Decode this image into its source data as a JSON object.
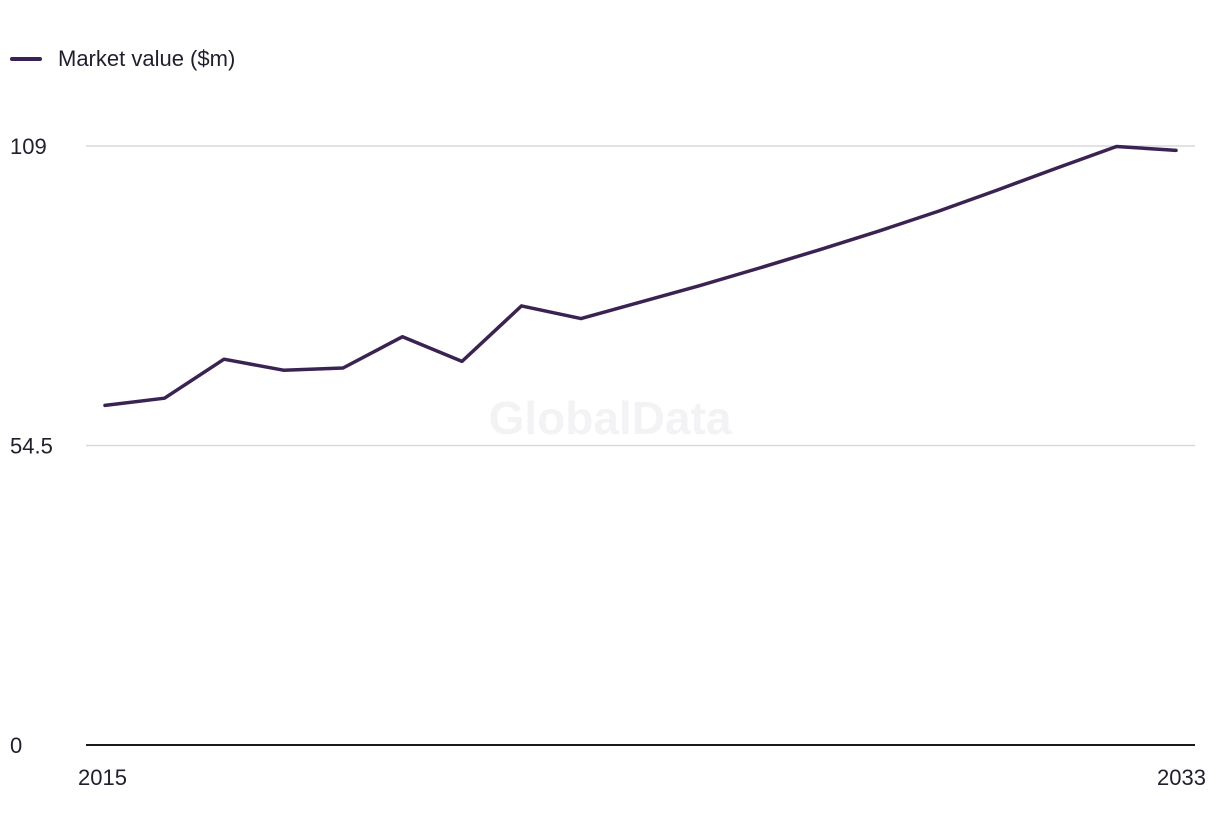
{
  "legend": {
    "label": "Market value ($m)"
  },
  "watermark": "GlobalData",
  "colors": {
    "line": "#3a2352",
    "grid": "#d9d9de",
    "axis": "#1a1a1a"
  },
  "chart_data": {
    "type": "line",
    "title": "",
    "xlabel": "",
    "ylabel": "",
    "x": [
      2015,
      2016,
      2017,
      2018,
      2019,
      2020,
      2021,
      2022,
      2023,
      2024,
      2025,
      2026,
      2027,
      2028,
      2029,
      2030,
      2031,
      2032,
      2033
    ],
    "series": [
      {
        "name": "Market value ($m)",
        "values": [
          61.8,
          63.1,
          70.2,
          68.2,
          68.6,
          74.3,
          69.8,
          79.9,
          77.6,
          80.6,
          83.6,
          86.8,
          90.1,
          93.5,
          97.1,
          101.0,
          105.0,
          108.9,
          108.2
        ]
      }
    ],
    "ylim": [
      0,
      109
    ],
    "yticks": [
      "0",
      "54.5",
      "109"
    ],
    "xticks": [
      "2015",
      "2033"
    ],
    "grid": true,
    "legend_position": "top-left"
  }
}
